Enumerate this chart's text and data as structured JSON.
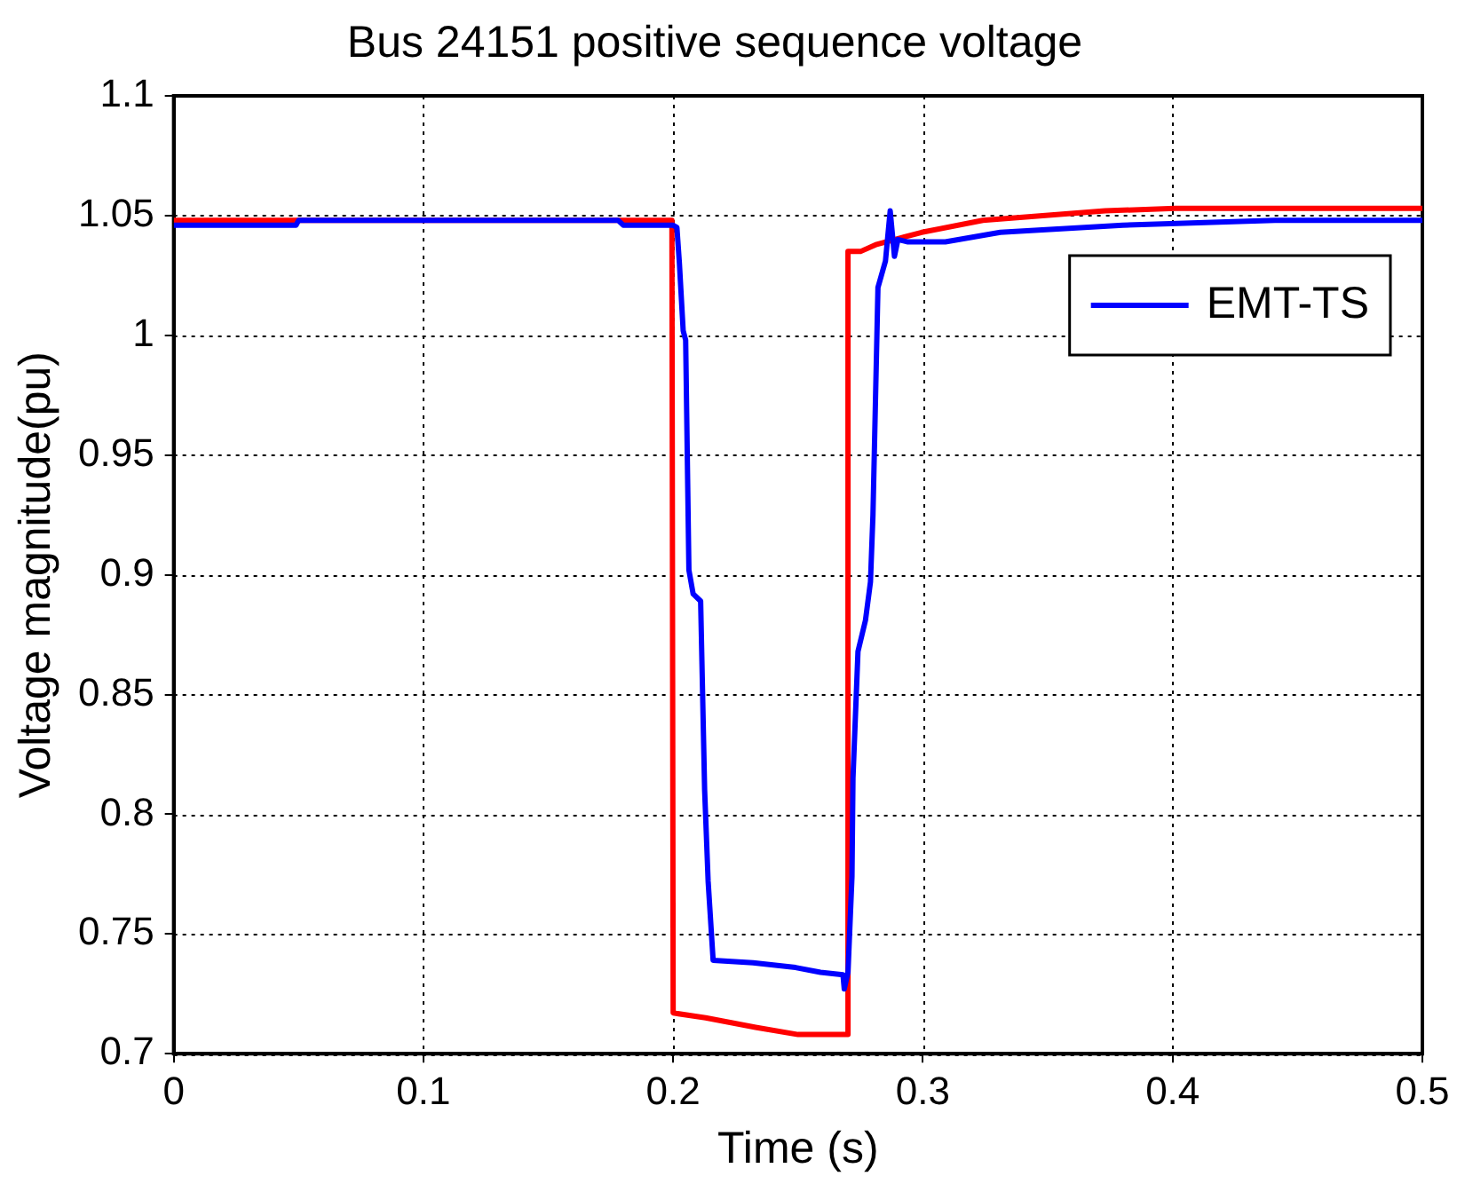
{
  "chart_data": {
    "type": "line",
    "title": "Bus 24151 positive sequence voltage",
    "xlabel": "Time (s)",
    "ylabel": "Voltage magnitude(pu)",
    "xlim": [
      0,
      0.5
    ],
    "xticks": [
      0,
      0.1,
      0.2,
      0.3,
      0.4,
      0.5
    ],
    "ylim": [
      0.7,
      1.1
    ],
    "yticks": [
      0.7,
      0.75,
      0.8,
      0.85,
      0.9,
      0.95,
      1,
      1.05,
      1.1
    ],
    "grid": true,
    "legend": "top right",
    "line_style": "solid",
    "marker": "none",
    "series": [
      {
        "name": "EMT-TS",
        "color": "#0000ff",
        "x": [
          0,
          0.049,
          0.05,
          0.178,
          0.18,
          0.2,
          0.2015,
          0.2025,
          0.204,
          0.205,
          0.2063,
          0.208,
          0.211,
          0.2126,
          0.214,
          0.216,
          0.232,
          0.249,
          0.259,
          0.268,
          0.2685,
          0.27,
          0.2716,
          0.272,
          0.274,
          0.277,
          0.279,
          0.28,
          0.282,
          0.285,
          0.2869,
          0.2886,
          0.29,
          0.294,
          0.309,
          0.331,
          0.38,
          0.441,
          0.5
        ],
        "values": [
          1.046,
          1.046,
          1.048,
          1.048,
          1.046,
          1.046,
          1.045,
          1.03,
          1.002,
          0.998,
          0.902,
          0.892,
          0.889,
          0.81,
          0.772,
          0.739,
          0.738,
          0.736,
          0.734,
          0.733,
          0.727,
          0.734,
          0.774,
          0.815,
          0.868,
          0.881,
          0.897,
          0.925,
          1.02,
          1.031,
          1.052,
          1.033,
          1.04,
          1.039,
          1.039,
          1.043,
          1.046,
          1.048,
          1.048
        ]
      },
      {
        "color": "#ff0000",
        "x": [
          0,
          0.1995,
          0.2,
          0.213,
          0.233,
          0.25,
          0.2698,
          0.27,
          0.275,
          0.2815,
          0.2995,
          0.324,
          0.373,
          0.401,
          0.5
        ],
        "values": [
          1.048,
          1.048,
          0.717,
          0.715,
          0.711,
          0.708,
          0.708,
          1.035,
          1.035,
          1.038,
          1.043,
          1.048,
          1.052,
          1.053,
          1.053
        ]
      }
    ]
  }
}
